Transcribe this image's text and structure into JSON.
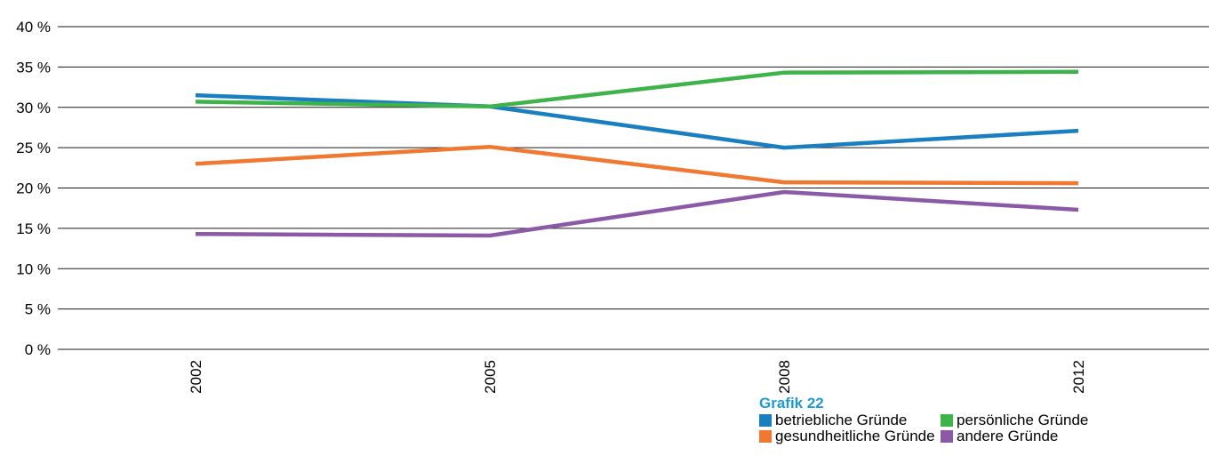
{
  "chart_data": {
    "type": "line",
    "title": "",
    "xlabel": "",
    "ylabel": "",
    "categories": [
      "2002",
      "2005",
      "2008",
      "2012"
    ],
    "ylim": [
      0,
      40
    ],
    "yticks": [
      0,
      5,
      10,
      15,
      20,
      25,
      30,
      35,
      40
    ],
    "ytick_labels": [
      "0 %",
      "5 %",
      "10 %",
      "15 %",
      "20 %",
      "25 %",
      "30 %",
      "35 %",
      "40 %"
    ],
    "grid": true,
    "legend_placement": "bottom-right",
    "series": [
      {
        "name": "betriebliche Gründe",
        "color": "#1a7fc1",
        "values": [
          31.5,
          30.1,
          25.0,
          27.1
        ]
      },
      {
        "name": "persönliche Gründe",
        "color": "#3db34a",
        "values": [
          30.7,
          30.1,
          34.3,
          34.4
        ]
      },
      {
        "name": "gesundheitliche Gründe",
        "color": "#f07830",
        "values": [
          23.0,
          25.1,
          20.7,
          20.6
        ]
      },
      {
        "name": "andere Gründe",
        "color": "#8a5aa6",
        "values": [
          14.3,
          14.1,
          19.5,
          17.3
        ]
      }
    ]
  },
  "legend": {
    "title": "Grafik 22",
    "title_color": "#1e9ad6"
  }
}
